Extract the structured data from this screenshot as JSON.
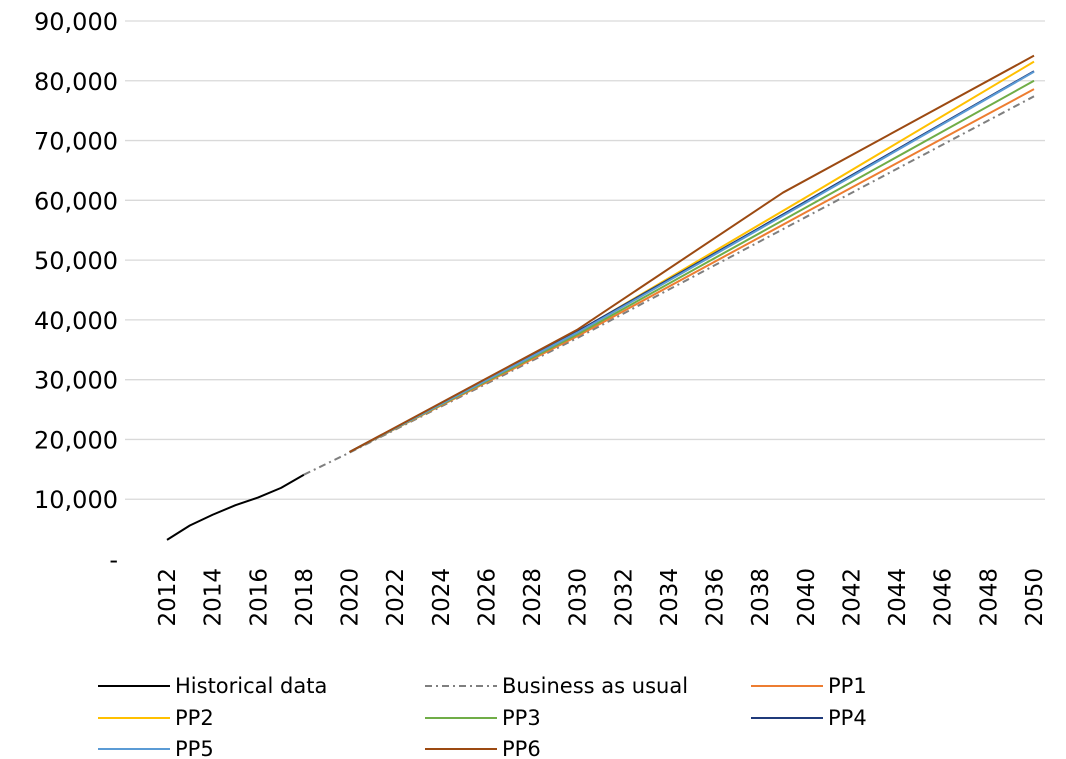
{
  "chart_data": {
    "type": "line",
    "title": "",
    "xlabel": "",
    "ylabel": "",
    "xlim": [
      2012,
      2050
    ],
    "ylim": [
      0,
      90000
    ],
    "grid": true,
    "legend_position": "bottom",
    "y_ticks": [
      {
        "value": 0,
        "label": "-"
      },
      {
        "value": 10000,
        "label": "10,000"
      },
      {
        "value": 20000,
        "label": "20,000"
      },
      {
        "value": 30000,
        "label": "30,000"
      },
      {
        "value": 40000,
        "label": "40,000"
      },
      {
        "value": 50000,
        "label": "50,000"
      },
      {
        "value": 60000,
        "label": "60,000"
      },
      {
        "value": 70000,
        "label": "70,000"
      },
      {
        "value": 80000,
        "label": "80,000"
      },
      {
        "value": 90000,
        "label": "90,000"
      }
    ],
    "x_ticks": [
      "2012",
      "2014",
      "2016",
      "2018",
      "2020",
      "2022",
      "2024",
      "2026",
      "2028",
      "2030",
      "2032",
      "2034",
      "2036",
      "2038",
      "2040",
      "2042",
      "2044",
      "2046",
      "2048",
      "2050"
    ],
    "series": [
      {
        "name": "Historical data",
        "color": "#000000",
        "dash": "solid",
        "x": [
          2012,
          2013,
          2014,
          2015,
          2016,
          2017,
          2018
        ],
        "y": [
          3200,
          5600,
          7400,
          9000,
          10300,
          11900,
          14100
        ]
      },
      {
        "name": "Business as usual",
        "color": "#7f7f7f",
        "dash": "dashdot",
        "x": [
          2018,
          2020,
          2030,
          2040,
          2050
        ],
        "y": [
          14100,
          17800,
          37000,
          57200,
          77400
        ]
      },
      {
        "name": "PP1",
        "color": "#ed7d31",
        "dash": "solid",
        "x": [
          2020,
          2030,
          2040,
          2050
        ],
        "y": [
          17900,
          37300,
          58000,
          78600
        ]
      },
      {
        "name": "PP2",
        "color": "#ffc000",
        "dash": "solid",
        "x": [
          2020,
          2030,
          2040,
          2050
        ],
        "y": [
          17900,
          38000,
          60500,
          83200
        ]
      },
      {
        "name": "PP3",
        "color": "#70ad47",
        "dash": "solid",
        "x": [
          2020,
          2030,
          2040,
          2050
        ],
        "y": [
          17900,
          37600,
          58800,
          80000
        ]
      },
      {
        "name": "PP4",
        "color": "#1f3a7a",
        "dash": "solid",
        "x": [
          2020,
          2030,
          2040,
          2050
        ],
        "y": [
          17900,
          38100,
          59800,
          81600
        ]
      },
      {
        "name": "PP5",
        "color": "#5b9bd5",
        "dash": "solid",
        "x": [
          2020,
          2030,
          2040,
          2050
        ],
        "y": [
          17900,
          37900,
          59600,
          81500
        ]
      },
      {
        "name": "PP6",
        "color": "#9c4a12",
        "dash": "solid",
        "x": [
          2020,
          2030,
          2039,
          2050
        ],
        "y": [
          17900,
          38400,
          61300,
          84200
        ]
      }
    ]
  }
}
